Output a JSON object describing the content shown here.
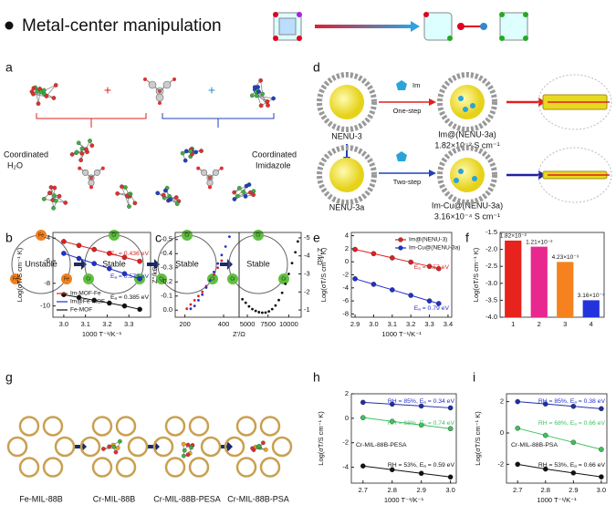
{
  "title": "Metal-center manipulation",
  "panel_labels": [
    "a",
    "b",
    "c",
    "d",
    "e",
    "f",
    "g",
    "h",
    "i"
  ],
  "a": {
    "left": [
      "Coordinated",
      "H₂O"
    ],
    "right": [
      "Coordinated",
      "Imidazole"
    ],
    "plus": "+"
  },
  "d": {
    "top": [
      "NENU-3",
      "One-step",
      "Im@(NENU-3a)",
      "1.82×10⁻² S cm⁻¹"
    ],
    "bottom": [
      "NENU-3a",
      "Two-step",
      "Im-Cu@(NENU-3a)",
      "3.16×10⁻⁴ S cm⁻¹"
    ],
    "icon": "Im"
  },
  "g": {
    "states": [
      "Unstable",
      "Stable",
      "Stable",
      "Stable"
    ],
    "names": [
      "Fe-MIL-88B",
      "Cr-MIL-88B",
      "Cr-MIL-88B-PESA",
      "Cr-MIL-88B-PSA"
    ],
    "atoms": [
      "Fe",
      "Cr"
    ]
  },
  "chart_data": [
    {
      "type": "line",
      "ylabel": "Log(σT/S cm⁻¹ K)",
      "xlabel": "1000 T⁻¹/K⁻¹",
      "x": [
        3.0,
        3.07,
        3.14,
        3.21,
        3.28,
        3.35
      ],
      "xlim": [
        2.95,
        3.4
      ],
      "xticks": [
        {
          "value": 3,
          "label": "3.0"
        },
        3.1,
        3.2,
        3.3
      ],
      "ylim": [
        -11,
        -3.5
      ],
      "yticks": [
        -4,
        -6,
        -8,
        -10
      ],
      "legend": "lower left",
      "series": [
        {
          "name": "Im-MOF-Fe",
          "color": "#e02020",
          "values": [
            -4.3,
            -4.65,
            -5.0,
            -5.35,
            -5.7,
            -6.05
          ]
        },
        {
          "name": "Im@Fe-MOF",
          "color": "#2030d0",
          "values": [
            -5.35,
            -5.8,
            -6.25,
            -6.7,
            -7.15,
            -7.6
          ]
        },
        {
          "name": "Fe-MOF",
          "color": "#111111",
          "values": [
            -9.0,
            -9.25,
            -9.5,
            -9.75,
            -10.0,
            -10.3
          ]
        }
      ],
      "annotations": [
        {
          "text": "Eₐ = 0.436 eV",
          "color": "#e02020"
        },
        {
          "text": "Eₐ = 0.573 eV",
          "color": "#2030d0"
        },
        {
          "text": "Eₐ = 0.385 eV",
          "color": "#111111"
        }
      ]
    },
    {
      "type": "scatter",
      "ylabel": "Z''/kΩ",
      "xlim": [
        150,
        480
      ],
      "xticks": [
        200,
        400
      ],
      "ylim": [
        0.05,
        -0.55
      ],
      "yticks": [
        -0.5,
        -0.4,
        -0.3,
        -0.2,
        -0.1,
        {
          "value": 0,
          "label": "0.0"
        }
      ],
      "series": [
        {
          "color": "#e02020",
          "x": [
            210,
            230,
            250,
            270,
            290,
            310,
            330,
            350,
            370,
            390
          ],
          "values": [
            -0.01,
            -0.04,
            -0.07,
            -0.1,
            -0.13,
            -0.17,
            -0.21,
            -0.25,
            -0.3,
            -0.35
          ]
        },
        {
          "color": "#2030d0",
          "x": [
            230,
            250,
            270,
            290,
            310,
            330,
            350,
            370,
            390,
            410,
            430
          ],
          "values": [
            -0.01,
            -0.03,
            -0.07,
            -0.11,
            -0.16,
            -0.21,
            -0.27,
            -0.33,
            -0.39,
            -0.45,
            -0.52
          ]
        }
      ]
    },
    {
      "type": "scatter",
      "xlabel": "Z'/Ω",
      "y2label": "Z''/kΩ",
      "xlim": [
        4000,
        11500
      ],
      "xticks": [
        5000,
        7500,
        10000
      ],
      "y2lim": [
        -0.6,
        -5.3
      ],
      "y2ticks": [
        -1,
        -2,
        -3,
        -4,
        -5
      ],
      "series": [
        {
          "color": "#111111",
          "axis": "y2",
          "x": [
            4400,
            4800,
            5200,
            5600,
            6000,
            6400,
            6800,
            7200,
            7600,
            8000,
            8400,
            8800,
            9200,
            9600,
            10000,
            10400,
            10800,
            11100
          ],
          "values": [
            -1.6,
            -1.4,
            -1.2,
            -1.05,
            -0.95,
            -0.88,
            -0.85,
            -0.86,
            -0.92,
            -1.05,
            -1.25,
            -1.55,
            -1.95,
            -2.45,
            -3.0,
            -3.6,
            -4.2,
            -4.8
          ]
        }
      ]
    },
    {
      "type": "line",
      "ylabel": "Log(σT/S cm⁻¹ K)",
      "xlabel": "1000 T⁻¹/K⁻¹",
      "x": [
        2.9,
        3.0,
        3.1,
        3.2,
        3.3,
        3.35
      ],
      "xlim": [
        2.88,
        3.42
      ],
      "xticks": [
        2.9,
        {
          "value": 3,
          "label": "3.0"
        },
        3.1,
        3.2,
        3.3,
        3.4
      ],
      "ylim": [
        -8.5,
        4.5
      ],
      "yticks": [
        -8,
        -6,
        -4,
        -2,
        0,
        2,
        4
      ],
      "legend": "upper right",
      "series": [
        {
          "name": "Im@(NENU-3)",
          "color": "#e02020",
          "values": [
            1.9,
            1.25,
            0.6,
            -0.05,
            -0.7,
            -1.05
          ]
        },
        {
          "name": "Im-Cu@(NENU-3a)",
          "color": "#2030d0",
          "values": [
            -2.6,
            -3.45,
            -4.3,
            -5.15,
            -6.0,
            -6.4
          ]
        }
      ],
      "annotations": [
        {
          "text": "Eₐ = 0.57 eV",
          "color": "#e02020"
        },
        {
          "text": "Eₐ = 0.79 eV",
          "color": "#2030d0"
        }
      ]
    },
    {
      "type": "bar",
      "ylabel": "Log(σT/S cm⁻¹ K)",
      "categories": [
        "1",
        "2",
        "3",
        "4"
      ],
      "values": [
        -1.74,
        -1.92,
        -2.37,
        -3.5
      ],
      "colors": [
        "#e8221c",
        "#e8288f",
        "#f5821f",
        "#2233dd"
      ],
      "ylim": [
        -4.0,
        -1.5
      ],
      "yticks": [
        -1.5,
        {
          "value": -2,
          "label": "-2.0"
        },
        -2.5,
        {
          "value": -3,
          "label": "-3.0"
        },
        -3.5,
        {
          "value": -4,
          "label": "-4.0"
        }
      ],
      "bar_labels": [
        "1.82×10⁻²",
        "1.21×10⁻²",
        "4.23×10⁻³",
        "3.16×10⁻⁴"
      ]
    },
    {
      "type": "line",
      "ylabel": "Log(σT/S cm⁻¹ K)",
      "xlabel": "1000 T⁻¹/K⁻¹",
      "x": [
        2.7,
        2.8,
        2.9,
        3.0
      ],
      "xlim": [
        2.66,
        3.02
      ],
      "xticks": [
        2.7,
        2.8,
        2.9,
        {
          "value": 3,
          "label": "3.0"
        }
      ],
      "ylim": [
        -5.3,
        2.0
      ],
      "yticks": [
        -4,
        -2,
        0,
        2
      ],
      "series": [
        {
          "color": "#2030a0",
          "values": [
            1.3,
            1.15,
            1.0,
            0.85
          ]
        },
        {
          "color": "#40c060",
          "values": [
            0.05,
            -0.25,
            -0.55,
            -0.85
          ]
        },
        {
          "color": "#111111",
          "values": [
            -3.9,
            -4.2,
            -4.5,
            -4.8
          ]
        }
      ],
      "annotations": [
        {
          "text": "RH = 85%, Eₐ = 0.34 eV",
          "color": "#2030d0"
        },
        {
          "text": "RH = 68%, Eₐ = 0.74 eV",
          "color": "#40c060"
        },
        {
          "text": "Cr-MIL-88B-PESA",
          "color": "#111111"
        },
        {
          "text": "RH = 53%, Eₐ = 0.59 eV",
          "color": "#111111"
        }
      ]
    },
    {
      "type": "line",
      "ylabel": "Log(σT/S cm⁻¹ K)",
      "xlabel": "1000 T⁻¹/K⁻¹",
      "x": [
        2.7,
        2.8,
        2.9,
        3.0
      ],
      "xlim": [
        2.66,
        3.02
      ],
      "xticks": [
        2.7,
        2.8,
        2.9,
        {
          "value": 3,
          "label": "3.0"
        }
      ],
      "ylim": [
        -3.2,
        2.5
      ],
      "yticks": [
        -2,
        0,
        2
      ],
      "series": [
        {
          "color": "#2030a0",
          "values": [
            2.0,
            1.85,
            1.7,
            1.55
          ]
        },
        {
          "color": "#40c060",
          "values": [
            0.3,
            -0.15,
            -0.6,
            -1.05
          ]
        },
        {
          "color": "#111111",
          "values": [
            -2.0,
            -2.3,
            -2.55,
            -2.8
          ]
        }
      ],
      "annotations": [
        {
          "text": "RH = 85%, Eₐ = 0.38 eV",
          "color": "#2030d0"
        },
        {
          "text": "RH = 68%, Eₐ = 0.66 eV",
          "color": "#40c060"
        },
        {
          "text": "Cr-MIL-88B-PSA",
          "color": "#111111"
        },
        {
          "text": "RH = 53%, Eₐ = 0.66 eV",
          "color": "#111111"
        }
      ]
    }
  ]
}
